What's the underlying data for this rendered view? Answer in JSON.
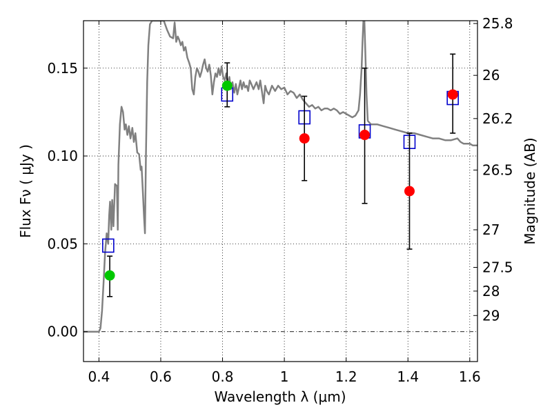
{
  "chart_data": {
    "type": "scatter",
    "xlabel": "Wavelength  λ (μm)",
    "ylabel": "Flux  Fν  ( μJy )",
    "ylabel_right": "Magnitude (AB)",
    "xlim": [
      0.35,
      1.625
    ],
    "ylim": [
      -0.017,
      0.177
    ],
    "grid": true,
    "x_ticks": [
      0.4,
      0.6,
      0.8,
      1.0,
      1.2,
      1.4,
      1.6
    ],
    "x_tick_labels": [
      "0.4",
      "0.6",
      "0.8",
      "1",
      "1.2",
      "1.4",
      "1.6"
    ],
    "y_ticks": [
      0.0,
      0.05,
      0.1,
      0.15
    ],
    "y_tick_labels": [
      "0.00",
      "0.05",
      "0.10",
      "0.15"
    ],
    "right_ticks": [
      {
        "label": "25.8",
        "flux": 0.1754
      },
      {
        "label": "26",
        "flux": 0.1459
      },
      {
        "label": "26.2",
        "flux": 0.1213
      },
      {
        "label": "26.5",
        "flux": 0.092
      },
      {
        "label": "27",
        "flux": 0.058
      },
      {
        "label": "27.5",
        "flux": 0.0366
      },
      {
        "label": "28",
        "flux": 0.0231
      },
      {
        "label": "29",
        "flux": 0.0092
      }
    ],
    "series": [
      {
        "kind": "line",
        "color": "#808080",
        "points": [
          [
            0.35,
            0.0
          ],
          [
            0.4,
            0.0
          ],
          [
            0.405,
            0.002
          ],
          [
            0.41,
            0.012
          ],
          [
            0.415,
            0.028
          ],
          [
            0.42,
            0.045
          ],
          [
            0.425,
            0.056
          ],
          [
            0.43,
            0.05
          ],
          [
            0.433,
            0.066
          ],
          [
            0.436,
            0.074
          ],
          [
            0.44,
            0.058
          ],
          [
            0.443,
            0.075
          ],
          [
            0.447,
            0.06
          ],
          [
            0.452,
            0.084
          ],
          [
            0.458,
            0.083
          ],
          [
            0.461,
            0.058
          ],
          [
            0.463,
            0.095
          ],
          [
            0.468,
            0.118
          ],
          [
            0.473,
            0.128
          ],
          [
            0.478,
            0.125
          ],
          [
            0.483,
            0.115
          ],
          [
            0.487,
            0.118
          ],
          [
            0.492,
            0.112
          ],
          [
            0.497,
            0.117
          ],
          [
            0.502,
            0.11
          ],
          [
            0.508,
            0.116
          ],
          [
            0.513,
            0.108
          ],
          [
            0.518,
            0.113
          ],
          [
            0.524,
            0.102
          ],
          [
            0.53,
            0.101
          ],
          [
            0.535,
            0.092
          ],
          [
            0.538,
            0.094
          ],
          [
            0.542,
            0.08
          ],
          [
            0.546,
            0.065
          ],
          [
            0.549,
            0.056
          ],
          [
            0.552,
            0.1
          ],
          [
            0.556,
            0.142
          ],
          [
            0.56,
            0.163
          ],
          [
            0.565,
            0.175
          ],
          [
            0.572,
            0.177
          ],
          [
            0.58,
            0.177
          ],
          [
            0.59,
            0.177
          ],
          [
            0.6,
            0.177
          ],
          [
            0.61,
            0.177
          ],
          [
            0.62,
            0.172
          ],
          [
            0.63,
            0.168
          ],
          [
            0.64,
            0.167
          ],
          [
            0.645,
            0.176
          ],
          [
            0.65,
            0.165
          ],
          [
            0.655,
            0.168
          ],
          [
            0.66,
            0.166
          ],
          [
            0.665,
            0.163
          ],
          [
            0.67,
            0.165
          ],
          [
            0.675,
            0.16
          ],
          [
            0.68,
            0.162
          ],
          [
            0.686,
            0.156
          ],
          [
            0.692,
            0.153
          ],
          [
            0.697,
            0.15
          ],
          [
            0.702,
            0.138
          ],
          [
            0.707,
            0.135
          ],
          [
            0.712,
            0.145
          ],
          [
            0.717,
            0.15
          ],
          [
            0.722,
            0.148
          ],
          [
            0.727,
            0.145
          ],
          [
            0.732,
            0.148
          ],
          [
            0.737,
            0.152
          ],
          [
            0.742,
            0.155
          ],
          [
            0.747,
            0.15
          ],
          [
            0.752,
            0.148
          ],
          [
            0.757,
            0.152
          ],
          [
            0.762,
            0.146
          ],
          [
            0.767,
            0.135
          ],
          [
            0.772,
            0.142
          ],
          [
            0.777,
            0.147
          ],
          [
            0.782,
            0.145
          ],
          [
            0.787,
            0.15
          ],
          [
            0.792,
            0.146
          ],
          [
            0.797,
            0.151
          ],
          [
            0.802,
            0.145
          ],
          [
            0.807,
            0.143
          ],
          [
            0.812,
            0.147
          ],
          [
            0.817,
            0.141
          ],
          [
            0.822,
            0.145
          ],
          [
            0.827,
            0.138
          ],
          [
            0.832,
            0.142
          ],
          [
            0.838,
            0.136
          ],
          [
            0.843,
            0.141
          ],
          [
            0.848,
            0.135
          ],
          [
            0.853,
            0.139
          ],
          [
            0.858,
            0.143
          ],
          [
            0.863,
            0.138
          ],
          [
            0.868,
            0.142
          ],
          [
            0.873,
            0.139
          ],
          [
            0.878,
            0.14
          ],
          [
            0.883,
            0.137
          ],
          [
            0.888,
            0.143
          ],
          [
            0.893,
            0.141
          ],
          [
            0.9,
            0.138
          ],
          [
            0.91,
            0.142
          ],
          [
            0.917,
            0.138
          ],
          [
            0.922,
            0.143
          ],
          [
            0.928,
            0.136
          ],
          [
            0.933,
            0.13
          ],
          [
            0.938,
            0.14
          ],
          [
            0.943,
            0.137
          ],
          [
            0.95,
            0.135
          ],
          [
            0.96,
            0.14
          ],
          [
            0.97,
            0.137
          ],
          [
            0.98,
            0.14
          ],
          [
            0.99,
            0.138
          ],
          [
            1.0,
            0.139
          ],
          [
            1.01,
            0.135
          ],
          [
            1.02,
            0.137
          ],
          [
            1.03,
            0.136
          ],
          [
            1.04,
            0.133
          ],
          [
            1.05,
            0.135
          ],
          [
            1.06,
            0.132
          ],
          [
            1.07,
            0.13
          ],
          [
            1.08,
            0.128
          ],
          [
            1.09,
            0.129
          ],
          [
            1.1,
            0.127
          ],
          [
            1.11,
            0.128
          ],
          [
            1.12,
            0.126
          ],
          [
            1.13,
            0.127
          ],
          [
            1.14,
            0.127
          ],
          [
            1.15,
            0.126
          ],
          [
            1.16,
            0.127
          ],
          [
            1.17,
            0.126
          ],
          [
            1.18,
            0.124
          ],
          [
            1.19,
            0.125
          ],
          [
            1.2,
            0.124
          ],
          [
            1.21,
            0.123
          ],
          [
            1.22,
            0.122
          ],
          [
            1.23,
            0.123
          ],
          [
            1.24,
            0.126
          ],
          [
            1.245,
            0.135
          ],
          [
            1.25,
            0.15
          ],
          [
            1.253,
            0.165
          ],
          [
            1.256,
            0.177
          ],
          [
            1.259,
            0.177
          ],
          [
            1.262,
            0.16
          ],
          [
            1.266,
            0.135
          ],
          [
            1.27,
            0.12
          ],
          [
            1.28,
            0.118
          ],
          [
            1.3,
            0.118
          ],
          [
            1.32,
            0.117
          ],
          [
            1.34,
            0.116
          ],
          [
            1.36,
            0.115
          ],
          [
            1.38,
            0.114
          ],
          [
            1.4,
            0.113
          ],
          [
            1.42,
            0.113
          ],
          [
            1.44,
            0.112
          ],
          [
            1.46,
            0.111
          ],
          [
            1.48,
            0.11
          ],
          [
            1.5,
            0.11
          ],
          [
            1.52,
            0.109
          ],
          [
            1.54,
            0.109
          ],
          [
            1.56,
            0.11
          ],
          [
            1.57,
            0.108
          ],
          [
            1.58,
            0.107
          ],
          [
            1.6,
            0.107
          ],
          [
            1.61,
            0.106
          ],
          [
            1.625,
            0.106
          ]
        ]
      },
      {
        "kind": "square",
        "color": "#0000cc",
        "points": [
          [
            0.43,
            0.049
          ],
          [
            0.815,
            0.135
          ],
          [
            1.065,
            0.122
          ],
          [
            1.26,
            0.114
          ],
          [
            1.405,
            0.108
          ],
          [
            1.545,
            0.133
          ]
        ]
      },
      {
        "kind": "errorbar",
        "color": "#000000",
        "points": [
          {
            "x": 0.435,
            "lo": 0.02,
            "hi": 0.043
          },
          {
            "x": 0.815,
            "lo": 0.128,
            "hi": 0.153
          },
          {
            "x": 1.065,
            "lo": 0.086,
            "hi": 0.134
          },
          {
            "x": 1.26,
            "lo": 0.073,
            "hi": 0.15
          },
          {
            "x": 1.405,
            "lo": 0.047,
            "hi": 0.113
          },
          {
            "x": 1.545,
            "lo": 0.113,
            "hi": 0.158
          }
        ]
      },
      {
        "kind": "circle",
        "color": "#00c800",
        "points": [
          [
            0.435,
            0.032
          ],
          [
            0.815,
            0.14
          ]
        ]
      },
      {
        "kind": "circle",
        "color": "#ff0000",
        "points": [
          [
            1.065,
            0.11
          ],
          [
            1.26,
            0.112
          ],
          [
            1.405,
            0.08
          ],
          [
            1.545,
            0.135
          ]
        ]
      }
    ]
  }
}
